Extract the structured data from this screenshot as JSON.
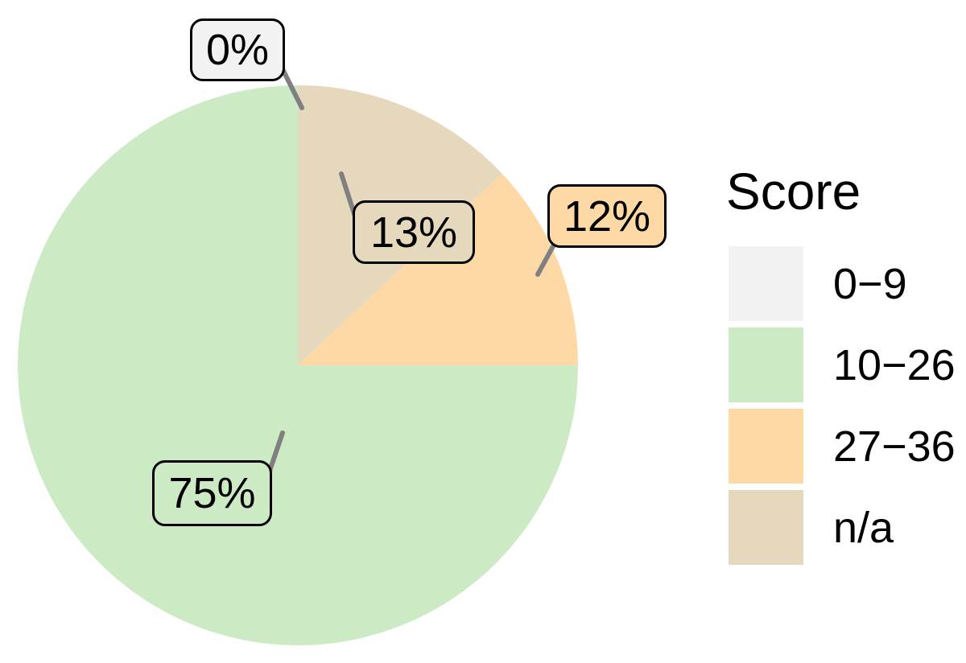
{
  "chart_data": {
    "type": "pie",
    "title": "",
    "legend": {
      "title": "Score",
      "position": "right"
    },
    "rotation": "counterclockwise-from-top",
    "categories": [
      "0−9",
      "10−26",
      "27−36",
      "n/a"
    ],
    "slices": [
      {
        "category": "0−9",
        "percent": 0,
        "display_label": "0%",
        "color": "#F2F2F2"
      },
      {
        "category": "10−26",
        "percent": 75,
        "display_label": "75%",
        "color": "#CCEBC5"
      },
      {
        "category": "27−36",
        "percent": 12,
        "display_label": "12%",
        "color": "#FED9A6"
      },
      {
        "category": "n/a",
        "percent": 13,
        "display_label": "13%",
        "color": "#E5D8BD"
      }
    ],
    "style": {
      "leader_line_color": "#808080",
      "label_border_color": "#000000",
      "label_text_color": "#000000",
      "background": "#FFFFFF"
    }
  }
}
